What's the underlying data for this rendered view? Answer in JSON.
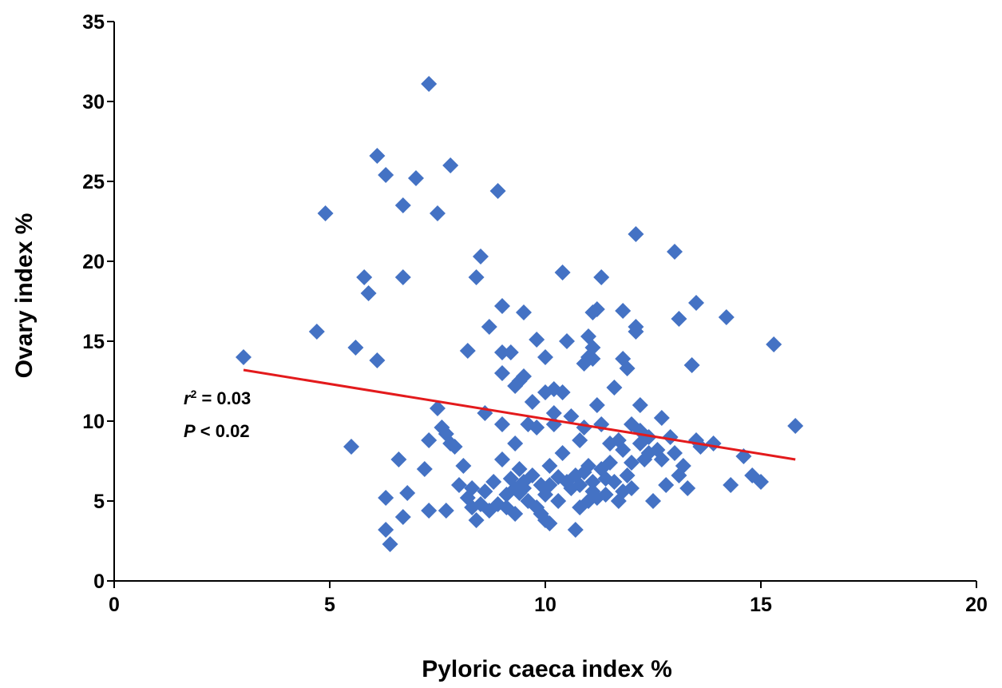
{
  "chart_data": {
    "type": "scatter",
    "title": "",
    "xlabel": "Pyloric caeca index %",
    "ylabel": "Ovary index %",
    "xlim": [
      0,
      20
    ],
    "ylim": [
      0,
      35
    ],
    "xticks": [
      "0",
      "5",
      "10",
      "15",
      "20"
    ],
    "yticks": [
      "0",
      "5",
      "10",
      "15",
      "20",
      "25",
      "30",
      "35"
    ],
    "grid": false,
    "legend": "none",
    "marker": "diamond",
    "marker_color": "#4472C4",
    "trendline_color": "#E31A1C",
    "trendline": {
      "x": [
        3.0,
        15.8
      ],
      "y": [
        13.2,
        7.6
      ]
    },
    "annotation": {
      "r_symbol": "r",
      "r_exponent": "2",
      "r_text": " = 0.03",
      "p_symbol": "P",
      "p_text": " < 0.02"
    },
    "series": [
      {
        "points": [
          [
            3.0,
            14.0
          ],
          [
            4.7,
            15.6
          ],
          [
            4.9,
            23.0
          ],
          [
            5.5,
            8.4
          ],
          [
            5.6,
            14.6
          ],
          [
            5.8,
            19.0
          ],
          [
            5.9,
            18.0
          ],
          [
            6.1,
            26.6
          ],
          [
            6.1,
            13.8
          ],
          [
            6.3,
            25.4
          ],
          [
            6.3,
            3.2
          ],
          [
            6.3,
            5.2
          ],
          [
            6.4,
            2.3
          ],
          [
            6.6,
            7.6
          ],
          [
            6.7,
            23.5
          ],
          [
            6.7,
            19.0
          ],
          [
            6.7,
            4.0
          ],
          [
            6.8,
            5.5
          ],
          [
            7.0,
            25.2
          ],
          [
            7.2,
            7.0
          ],
          [
            7.3,
            31.1
          ],
          [
            7.3,
            8.8
          ],
          [
            7.3,
            4.4
          ],
          [
            7.5,
            23.0
          ],
          [
            7.5,
            10.8
          ],
          [
            7.6,
            9.6
          ],
          [
            7.7,
            9.2
          ],
          [
            7.7,
            4.4
          ],
          [
            7.8,
            26.0
          ],
          [
            7.8,
            8.6
          ],
          [
            7.9,
            8.4
          ],
          [
            8.0,
            6.0
          ],
          [
            8.1,
            7.2
          ],
          [
            8.2,
            14.4
          ],
          [
            8.2,
            5.2
          ],
          [
            8.3,
            5.8
          ],
          [
            8.3,
            4.6
          ],
          [
            8.4,
            19.0
          ],
          [
            8.4,
            3.8
          ],
          [
            8.5,
            20.3
          ],
          [
            8.5,
            4.8
          ],
          [
            8.6,
            10.5
          ],
          [
            8.6,
            5.6
          ],
          [
            8.7,
            15.9
          ],
          [
            8.7,
            4.4
          ],
          [
            8.8,
            6.2
          ],
          [
            8.9,
            24.4
          ],
          [
            8.9,
            4.8
          ],
          [
            9.0,
            17.2
          ],
          [
            9.0,
            13.0
          ],
          [
            9.0,
            14.3
          ],
          [
            9.0,
            9.8
          ],
          [
            9.0,
            7.6
          ],
          [
            9.1,
            5.4
          ],
          [
            9.1,
            4.6
          ],
          [
            9.2,
            14.3
          ],
          [
            9.2,
            6.4
          ],
          [
            9.3,
            12.2
          ],
          [
            9.3,
            8.6
          ],
          [
            9.3,
            5.8
          ],
          [
            9.3,
            4.2
          ],
          [
            9.4,
            12.5
          ],
          [
            9.4,
            7.0
          ],
          [
            9.4,
            5.5
          ],
          [
            9.5,
            16.8
          ],
          [
            9.5,
            12.8
          ],
          [
            9.5,
            6.2
          ],
          [
            9.5,
            5.8
          ],
          [
            9.6,
            9.8
          ],
          [
            9.6,
            5.0
          ],
          [
            9.7,
            6.6
          ],
          [
            9.7,
            11.2
          ],
          [
            9.8,
            15.1
          ],
          [
            9.8,
            4.6
          ],
          [
            9.8,
            9.6
          ],
          [
            9.9,
            6.0
          ],
          [
            9.9,
            4.2
          ],
          [
            10.0,
            14.0
          ],
          [
            10.0,
            11.8
          ],
          [
            10.0,
            5.4
          ],
          [
            10.0,
            3.8
          ],
          [
            10.1,
            7.2
          ],
          [
            10.1,
            6.0
          ],
          [
            10.1,
            3.6
          ],
          [
            10.2,
            12.0
          ],
          [
            10.2,
            10.5
          ],
          [
            10.2,
            9.8
          ],
          [
            10.3,
            6.5
          ],
          [
            10.3,
            5.0
          ],
          [
            10.4,
            19.3
          ],
          [
            10.4,
            11.8
          ],
          [
            10.4,
            8.0
          ],
          [
            10.5,
            15.0
          ],
          [
            10.5,
            6.2
          ],
          [
            10.6,
            10.3
          ],
          [
            10.6,
            5.8
          ],
          [
            10.7,
            3.2
          ],
          [
            10.7,
            6.6
          ],
          [
            10.8,
            8.8
          ],
          [
            10.8,
            6.0
          ],
          [
            10.8,
            4.6
          ],
          [
            10.9,
            13.6
          ],
          [
            10.9,
            9.6
          ],
          [
            10.9,
            6.8
          ],
          [
            11.0,
            15.3
          ],
          [
            11.0,
            14.0
          ],
          [
            11.0,
            7.2
          ],
          [
            11.0,
            5.0
          ],
          [
            11.1,
            16.8
          ],
          [
            11.1,
            14.6
          ],
          [
            11.1,
            13.9
          ],
          [
            11.1,
            6.2
          ],
          [
            11.1,
            5.6
          ],
          [
            11.2,
            17.0
          ],
          [
            11.2,
            11.0
          ],
          [
            11.2,
            5.2
          ],
          [
            11.3,
            19.0
          ],
          [
            11.3,
            9.8
          ],
          [
            11.3,
            7.0
          ],
          [
            11.4,
            6.4
          ],
          [
            11.4,
            5.4
          ],
          [
            11.5,
            8.6
          ],
          [
            11.5,
            7.4
          ],
          [
            11.6,
            12.1
          ],
          [
            11.6,
            6.2
          ],
          [
            11.7,
            8.8
          ],
          [
            11.7,
            5.0
          ],
          [
            11.8,
            16.9
          ],
          [
            11.8,
            13.9
          ],
          [
            11.8,
            8.2
          ],
          [
            11.8,
            5.6
          ],
          [
            11.9,
            13.3
          ],
          [
            11.9,
            6.6
          ],
          [
            12.0,
            9.8
          ],
          [
            12.0,
            7.4
          ],
          [
            12.0,
            5.8
          ],
          [
            12.1,
            21.7
          ],
          [
            12.1,
            15.9
          ],
          [
            12.1,
            15.6
          ],
          [
            12.2,
            11.0
          ],
          [
            12.2,
            9.4
          ],
          [
            12.2,
            8.6
          ],
          [
            12.3,
            7.6
          ],
          [
            12.4,
            9.0
          ],
          [
            12.4,
            8.0
          ],
          [
            12.5,
            5.0
          ],
          [
            12.6,
            8.2
          ],
          [
            12.7,
            10.2
          ],
          [
            12.7,
            7.6
          ],
          [
            12.8,
            6.0
          ],
          [
            12.9,
            9.0
          ],
          [
            13.0,
            20.6
          ],
          [
            13.0,
            8.0
          ],
          [
            13.1,
            16.4
          ],
          [
            13.1,
            6.6
          ],
          [
            13.2,
            7.2
          ],
          [
            13.3,
            5.8
          ],
          [
            13.4,
            13.5
          ],
          [
            13.5,
            17.4
          ],
          [
            13.5,
            8.8
          ],
          [
            13.6,
            8.4
          ],
          [
            13.9,
            8.6
          ],
          [
            14.2,
            16.5
          ],
          [
            14.3,
            6.0
          ],
          [
            14.6,
            7.8
          ],
          [
            14.8,
            6.6
          ],
          [
            15.0,
            6.2
          ],
          [
            15.3,
            14.8
          ],
          [
            15.8,
            9.7
          ]
        ]
      }
    ]
  }
}
